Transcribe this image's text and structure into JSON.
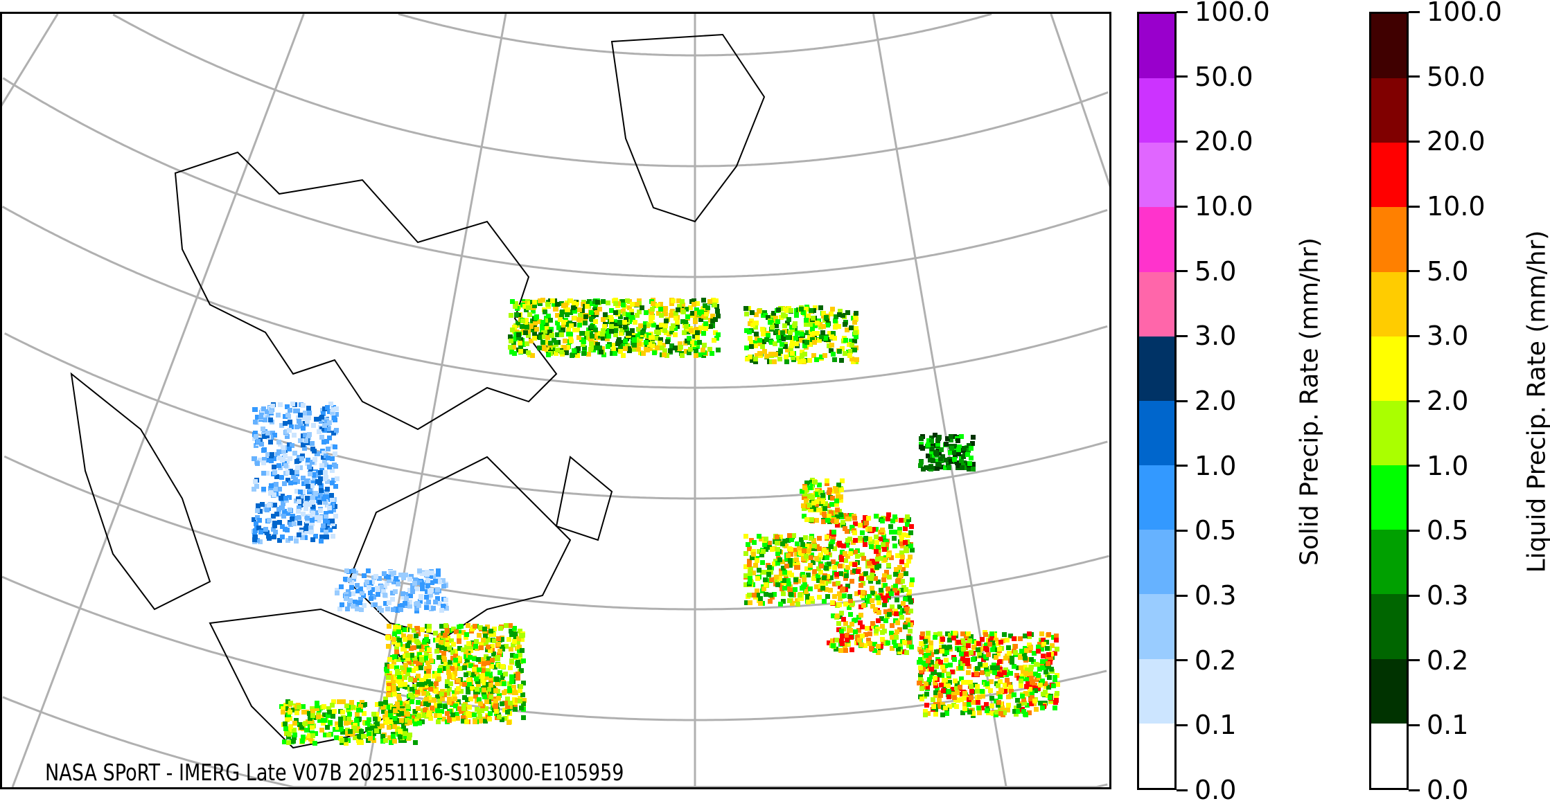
{
  "map": {
    "caption": "NASA SPoRT - IMERG Late V07B 20251116-S103000-E105959",
    "grid_color": "#b0b0b0",
    "coastline_color": "#000000"
  },
  "colorbars": [
    {
      "label": "Solid Precip. Rate (mm/hr)",
      "ticks": [
        "0.0",
        "0.1",
        "0.2",
        "0.3",
        "0.5",
        "1.0",
        "2.0",
        "3.0",
        "5.0",
        "10.0",
        "20.0",
        "50.0",
        "100.0"
      ],
      "colors": [
        "#ffffff",
        "#cce5ff",
        "#99ccff",
        "#66b2ff",
        "#3399ff",
        "#0066cc",
        "#003366",
        "#ff66aa",
        "#ff33cc",
        "#e066ff",
        "#cc33ff",
        "#9900cc"
      ]
    },
    {
      "label": "Liquid Precip. Rate (mm/hr)",
      "ticks": [
        "0.0",
        "0.1",
        "0.2",
        "0.3",
        "0.5",
        "1.0",
        "2.0",
        "3.0",
        "5.0",
        "10.0",
        "20.0",
        "50.0",
        "100.0"
      ],
      "colors": [
        "#ffffff",
        "#003300",
        "#006600",
        "#00a000",
        "#00ff00",
        "#aaff00",
        "#ffff00",
        "#ffcc00",
        "#ff8000",
        "#ff0000",
        "#800000",
        "#400000"
      ]
    }
  ]
}
